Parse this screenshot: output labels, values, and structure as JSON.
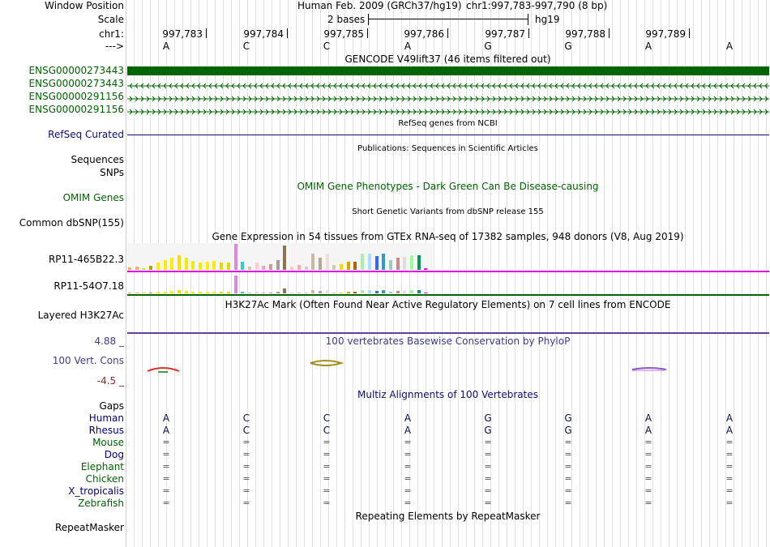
{
  "header": {
    "window_position_label": "Window Position",
    "scale_label": "Scale",
    "chr_label": "chr1:",
    "strand_label": "--->",
    "assembly": "Human Feb. 2009 (GRCh37/hg19)",
    "position": "chr1:997,783-997,790 (8 bp)",
    "scale_text": "2 bases",
    "scale_db": "hg19",
    "coords": [
      "997,783",
      "997,784",
      "997,785",
      "997,786",
      "997,787",
      "997,788",
      "997,789"
    ],
    "bases": [
      "A",
      "C",
      "C",
      "A",
      "G",
      "G",
      "A",
      "A"
    ]
  },
  "gencode": {
    "title": "GENCODE V49lift37 (46 items filtered out)",
    "items": [
      "ENSG00000273443",
      "ENSG00000273443",
      "ENSG00000291156",
      "ENSG00000291156"
    ],
    "color": "#006400"
  },
  "refseq": {
    "label": "RefSeq Curated",
    "title": "RefSeq genes from NCBI",
    "color": "#0c0c78"
  },
  "publications": {
    "sequences_label": "Sequences",
    "snps_label": "SNPs",
    "title": "Publications: Sequences in Scientific Articles"
  },
  "omim": {
    "label": "OMIM Genes",
    "title": "OMIM Gene Phenotypes - Dark Green Can Be Disease-causing",
    "color": "#006400"
  },
  "dbsnp": {
    "label": "Common dbSNP(155)",
    "title": "Short Genetic Variants from dbSNP release 155"
  },
  "gtex": {
    "title": "Gene Expression in 54 tissues from GTEx RNA-seq of 17382 samples, 948 donors (V8, Aug 2019)",
    "rows": [
      {
        "label": "RP11-465B22.3",
        "line_color": "#e000e0"
      },
      {
        "label": "RP11-54O7.18",
        "line_color": "#006400"
      }
    ],
    "tissue_colors": [
      "#ffaa55",
      "#ffaa55",
      "#aaff00",
      "#aaaa00",
      "#ffee00",
      "#ffee00",
      "#ffee00",
      "#ffdd00",
      "#eeee00",
      "#eeee00",
      "#eeee00",
      "#ffee00",
      "#ffee00",
      "#dddd00",
      "#dddd00",
      "#dd88dd",
      "#33cccc",
      "#cccc99",
      "#ffcccc",
      "#ff99cc",
      "#cc9999",
      "#aa9999",
      "#8b7355",
      "#ffc8c8",
      "#ffaaaa",
      "#cccccc",
      "#cdb79e",
      "#b8a690",
      "#eedddd",
      "#ccccaa",
      "#ffd700",
      "#ccaa00",
      "#aa6600",
      "#aaeeaa",
      "#aaddff",
      "#3366ff",
      "#3399cc",
      "#99ccbb",
      "#cc8888",
      "#dddddd",
      "#99ff99",
      "#009955",
      "#ff00ff"
    ],
    "values_1": [
      3,
      4,
      2,
      5,
      9,
      12,
      15,
      18,
      15,
      11,
      9,
      10,
      11,
      9,
      9,
      32,
      10,
      4,
      9,
      5,
      7,
      12,
      30,
      4,
      6,
      4,
      20,
      15,
      20,
      6,
      7,
      10,
      10,
      20,
      20,
      17,
      20,
      12,
      15,
      16,
      18,
      18,
      2
    ],
    "values_2": [
      1,
      1,
      0,
      1,
      2,
      2,
      3,
      4,
      3,
      2,
      2,
      2,
      2,
      2,
      2,
      22,
      2,
      1,
      2,
      1,
      1,
      2,
      6,
      1,
      1,
      1,
      4,
      3,
      4,
      1,
      1,
      2,
      2,
      4,
      4,
      3,
      4,
      2,
      3,
      3,
      4,
      4,
      0
    ]
  },
  "h3k27ac": {
    "label": "Layered H3K27Ac",
    "title": "H3K27Ac Mark (Often Found Near Active Regulatory Elements) on 7 cell lines from ENCODE",
    "line_color": "#6a3d9a"
  },
  "conservation": {
    "title": "100 vertebrates Basewise Conservation by PhyloP",
    "label": "100 Vert. Cons",
    "max_label": "4.88 _",
    "min_label": "-4.5 _",
    "label_color": "#3c3c8c",
    "min_color": "#8b2a2a"
  },
  "multiz": {
    "gaps_label": "Gaps",
    "gaps_color": "#d98c00",
    "title": "Multiz Alignments of 100 Vertebrates",
    "species": [
      {
        "name": "Human",
        "color": "#000080"
      },
      {
        "name": "Rhesus",
        "color": "#000080"
      },
      {
        "name": "Mouse",
        "color": "#006400"
      },
      {
        "name": "Dog",
        "color": "#000080"
      },
      {
        "name": "Elephant",
        "color": "#006400"
      },
      {
        "name": "Chicken",
        "color": "#006400"
      },
      {
        "name": "X_tropicalis",
        "color": "#000080"
      },
      {
        "name": "Zebrafish",
        "color": "#006400"
      }
    ],
    "human_seq": [
      "A",
      "C",
      "C",
      "A",
      "G",
      "G",
      "A",
      "A"
    ],
    "rhesus_seq": [
      "A",
      "C",
      "C",
      "A",
      "G",
      "G",
      "A",
      "A"
    ],
    "gap_char": "="
  },
  "repeatmasker": {
    "title": "Repeating Elements by RepeatMasker",
    "label": "RepeatMasker"
  }
}
